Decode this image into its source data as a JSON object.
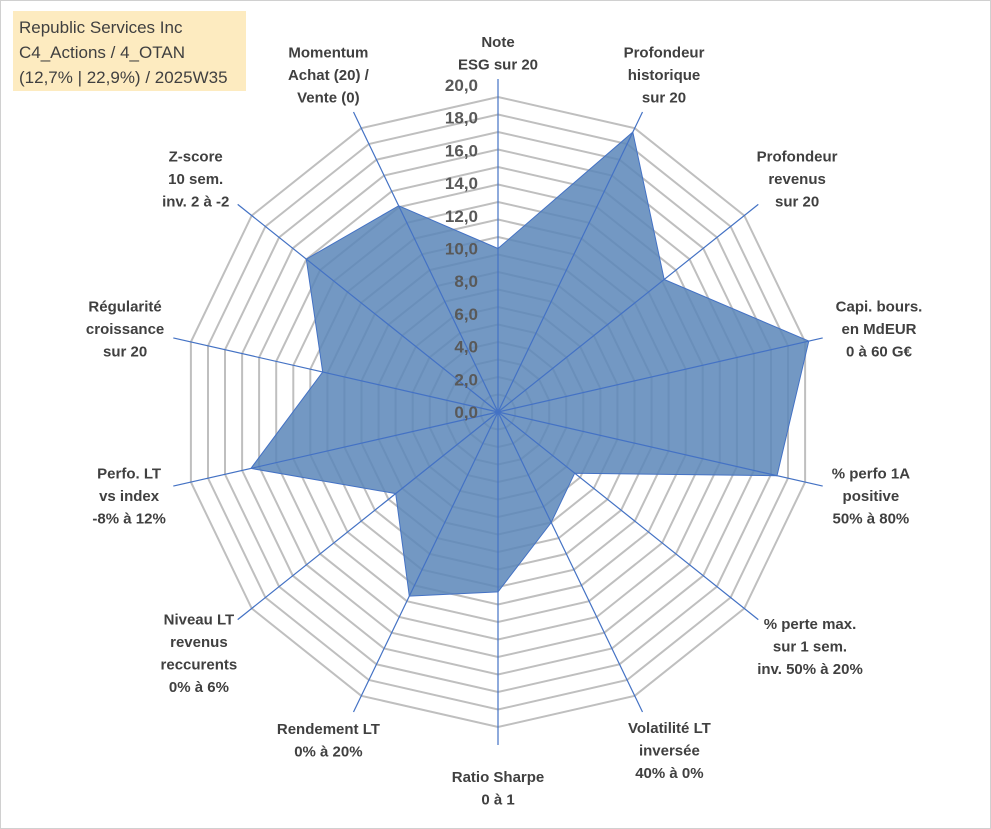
{
  "info_box": {
    "line1": "Republic Services Inc",
    "line2": "C4_Actions / 4_OTAN",
    "line3": "(12,7% | 22,9%) / 2025W35"
  },
  "colors": {
    "area_fill": "#5b86b8",
    "area_stroke": "#4472c4",
    "spoke": "#4472c4",
    "grid": "#bfbfbf",
    "text": "#404040"
  },
  "chart_data": {
    "type": "radar",
    "title": "",
    "rlim": [
      0,
      20
    ],
    "r_ticks": [
      "0,0",
      "2,0",
      "4,0",
      "6,0",
      "8,0",
      "10,0",
      "12,0",
      "14,0",
      "16,0",
      "18,0",
      "20,0"
    ],
    "grid": true,
    "categories": [
      [
        "Note",
        "ESG sur 20"
      ],
      [
        "Profondeur",
        "historique",
        "sur 20"
      ],
      [
        "Profondeur",
        "revenus",
        "sur 20"
      ],
      [
        "Capi. bours.",
        "en MdEUR",
        "0 à 60 G€"
      ],
      [
        "% perfo 1A",
        "positive",
        "50% à 80%"
      ],
      [
        "% perte max.",
        "sur 1 sem.",
        "inv. 50% à 20%"
      ],
      [
        "Volatilité LT",
        "inversée",
        "40% à 0%"
      ],
      [
        "Ratio Sharpe",
        "0 à 1"
      ],
      [
        "Rendement LT",
        "0% à 20%"
      ],
      [
        "Niveau LT",
        "revenus",
        "reccurents",
        "0% à 6%"
      ],
      [
        "Perfo. LT",
        "vs index",
        "-8% à 12%"
      ],
      [
        "Régularité",
        "croissance",
        "sur 20"
      ],
      [
        "Z-score",
        "10 sem.",
        "inv. 2 à -2"
      ],
      [
        "Momentum",
        "Achat (20) /",
        "Vente (0)"
      ]
    ],
    "series": [
      {
        "values": [
          10.0,
          19.0,
          13.0,
          19.5,
          17.5,
          6.0,
          7.5,
          11.0,
          12.5,
          8.0,
          15.5,
          11.0,
          15.0,
          14.0
        ]
      }
    ]
  }
}
